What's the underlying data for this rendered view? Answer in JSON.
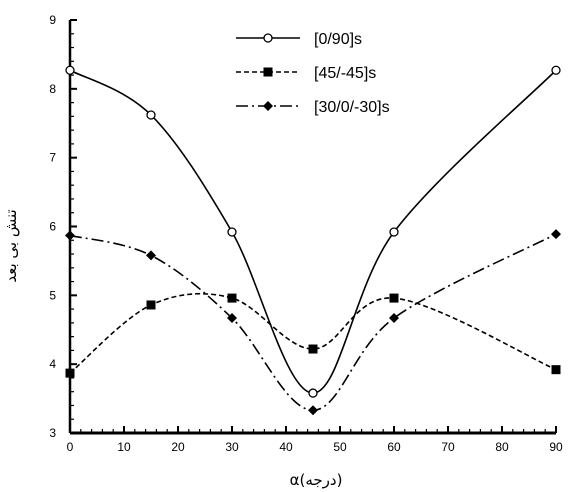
{
  "chart_data": {
    "type": "line",
    "title": "",
    "xlabel": "α(درجه)",
    "ylabel": "تنش بی بعد",
    "xlim": [
      0,
      90
    ],
    "ylim": [
      3,
      9
    ],
    "x_ticks": [
      0,
      10,
      20,
      30,
      40,
      50,
      60,
      70,
      80,
      90
    ],
    "y_ticks": [
      3,
      4,
      5,
      6,
      7,
      8,
      9
    ],
    "grid": false,
    "legend_position": "top-right",
    "series": [
      {
        "name": "[0/90]s",
        "marker": "open-circle",
        "dash": "solid",
        "x": [
          0,
          15,
          30,
          45,
          60,
          90
        ],
        "y": [
          8.27,
          7.62,
          5.92,
          3.58,
          5.92,
          8.27
        ]
      },
      {
        "name": "[45/-45]s",
        "marker": "filled-square",
        "dash": "dashed",
        "x": [
          0,
          15,
          30,
          45,
          60,
          90
        ],
        "y": [
          3.87,
          4.86,
          4.96,
          4.22,
          4.96,
          3.92
        ]
      },
      {
        "name": "[30/0/-30]s",
        "marker": "filled-diamond",
        "dash": "dash-dot",
        "x": [
          0,
          15,
          30,
          45,
          60,
          90
        ],
        "y": [
          5.87,
          5.58,
          4.67,
          3.33,
          4.67,
          5.89
        ]
      }
    ]
  }
}
